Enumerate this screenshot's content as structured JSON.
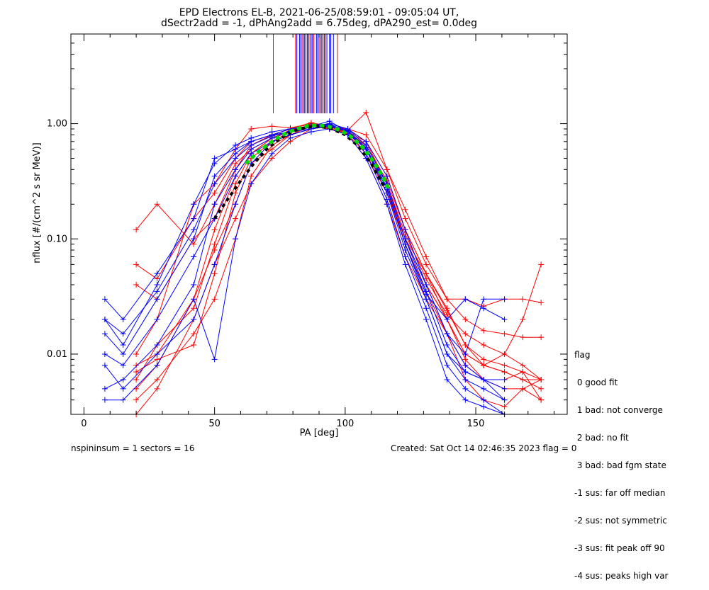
{
  "title": {
    "line1": "EPD Electrons EL-B, 2021-06-25/08:59:01 - 09:05:04 UT,",
    "line2": "dSectr2add = -1, dPhAng2add = 6.75deg, dPA290_est=   0.0deg"
  },
  "chart_data": {
    "type": "line",
    "xlabel": "PA [deg]",
    "ylabel": "nflux [#/(cm^2 s sr MeV)]",
    "xlim": [
      -5,
      185
    ],
    "ylim": [
      0.003,
      6.0
    ],
    "yscale": "log",
    "x_ticks": [
      0,
      50,
      100,
      150
    ],
    "x_tick_labels": [
      "0",
      "50",
      "100",
      "150"
    ],
    "y_ticks": [
      0.01,
      0.1,
      1.0
    ],
    "y_tick_labels": [
      "0.01",
      "0.10",
      "1.00"
    ],
    "grid": false,
    "colors": {
      "red": "#ff0000",
      "blue": "#0000ff",
      "green_fit": "#00dd00",
      "black_fit": "#000000"
    },
    "series": [
      {
        "color": "red",
        "x": [
          20,
          28,
          42,
          50,
          58,
          64,
          72,
          79,
          87,
          94,
          101,
          108,
          116,
          123,
          131,
          139,
          146,
          153,
          161,
          168,
          175
        ],
        "y": [
          0.12,
          0.2,
          0.09,
          0.2,
          0.45,
          0.6,
          0.75,
          0.85,
          0.95,
          0.9,
          0.85,
          0.7,
          0.35,
          0.12,
          0.05,
          0.025,
          0.012,
          0.008,
          0.007,
          0.006,
          0.006
        ]
      },
      {
        "color": "red",
        "x": [
          20,
          28,
          42,
          50,
          58,
          64,
          72,
          79,
          87,
          94,
          101,
          108,
          116,
          123,
          131,
          139,
          146,
          153,
          161,
          168,
          175
        ],
        "y": [
          0.06,
          0.045,
          0.15,
          0.25,
          0.5,
          0.7,
          0.8,
          0.9,
          1.02,
          0.95,
          0.8,
          0.65,
          0.3,
          0.1,
          0.04,
          0.02,
          0.01,
          0.008,
          0.01,
          0.02,
          0.06
        ]
      },
      {
        "color": "red",
        "x": [
          20,
          28,
          42,
          50,
          58,
          64,
          72,
          79,
          87,
          94,
          101,
          108,
          116,
          123,
          131,
          139,
          146,
          153,
          161,
          168,
          175
        ],
        "y": [
          0.008,
          0.01,
          0.03,
          0.08,
          0.2,
          0.45,
          0.6,
          0.8,
          0.95,
          0.9,
          0.85,
          0.6,
          0.25,
          0.1,
          0.05,
          0.02,
          0.009,
          0.006,
          0.006,
          0.007,
          0.004
        ]
      },
      {
        "color": "red",
        "x": [
          20,
          28,
          42,
          50,
          58,
          64,
          72,
          79,
          87,
          94,
          101,
          108,
          116,
          123,
          131,
          139,
          146,
          153,
          161,
          168,
          175
        ],
        "y": [
          0.003,
          0.005,
          0.02,
          0.06,
          0.15,
          0.3,
          0.5,
          0.7,
          0.9,
          1.0,
          0.8,
          0.5,
          0.2,
          0.07,
          0.03,
          0.015,
          0.006,
          0.004,
          0.0035,
          0.005,
          0.004
        ]
      },
      {
        "color": "red",
        "x": [
          20,
          28,
          42,
          50,
          58,
          64,
          72,
          79,
          87,
          94,
          101,
          108,
          116,
          123,
          131,
          139,
          146,
          153,
          161,
          168,
          175
        ],
        "y": [
          0.007,
          0.009,
          0.012,
          0.05,
          0.25,
          0.5,
          0.7,
          0.85,
          0.98,
          0.92,
          0.9,
          0.7,
          0.3,
          0.11,
          0.045,
          0.022,
          0.015,
          0.012,
          0.01,
          0.008,
          0.006
        ]
      },
      {
        "color": "red",
        "x": [
          20,
          28,
          42,
          50,
          58,
          64,
          72,
          79,
          87,
          94,
          101,
          108,
          116,
          123,
          131,
          139,
          146,
          153,
          161,
          168,
          175
        ],
        "y": [
          0.005,
          0.008,
          0.03,
          0.12,
          0.35,
          0.55,
          0.75,
          0.88,
          0.97,
          0.93,
          0.88,
          1.25,
          0.4,
          0.18,
          0.07,
          0.03,
          0.03,
          0.026,
          0.03,
          0.03,
          0.028
        ]
      },
      {
        "color": "red",
        "x": [
          20,
          28,
          42,
          50,
          58,
          64,
          72,
          79,
          87,
          94,
          101,
          108,
          116,
          123,
          131,
          139,
          146,
          153,
          161,
          168,
          175
        ],
        "y": [
          0.004,
          0.006,
          0.015,
          0.03,
          0.1,
          0.35,
          0.65,
          0.8,
          0.95,
          0.9,
          0.8,
          0.55,
          0.25,
          0.09,
          0.035,
          0.015,
          0.008,
          0.006,
          0.005,
          0.005,
          0.006
        ]
      },
      {
        "color": "red",
        "x": [
          20,
          28,
          42,
          50,
          58,
          64,
          72,
          79,
          87,
          94,
          101,
          108,
          116,
          123,
          131,
          139,
          146,
          153,
          161,
          168,
          175
        ],
        "y": [
          0.01,
          0.02,
          0.2,
          0.3,
          0.6,
          0.9,
          0.95,
          0.92,
          1.0,
          0.95,
          0.9,
          0.8,
          0.4,
          0.15,
          0.06,
          0.03,
          0.02,
          0.016,
          0.015,
          0.014,
          0.014
        ]
      },
      {
        "color": "red",
        "x": [
          20,
          28,
          42,
          50,
          58,
          64,
          72,
          79,
          87,
          94,
          101,
          108,
          116,
          123,
          131,
          139,
          146,
          153,
          161,
          168,
          175
        ],
        "y": [
          0.006,
          0.012,
          0.025,
          0.09,
          0.3,
          0.55,
          0.75,
          0.85,
          0.95,
          0.9,
          0.82,
          0.6,
          0.28,
          0.1,
          0.04,
          0.02,
          0.01,
          0.008,
          0.007,
          0.006,
          0.005
        ]
      },
      {
        "color": "red",
        "x": [
          20,
          28,
          42,
          50,
          58,
          64,
          72,
          79,
          87,
          94,
          101,
          108,
          116,
          123,
          131,
          139,
          146,
          153,
          161,
          168,
          175
        ],
        "y": [
          0.04,
          0.03,
          0.1,
          0.15,
          0.4,
          0.65,
          0.8,
          0.9,
          1.0,
          0.95,
          0.85,
          0.65,
          0.32,
          0.12,
          0.05,
          0.024,
          0.012,
          0.009,
          0.008,
          0.007,
          0.006
        ]
      },
      {
        "color": "blue",
        "x": [
          8,
          15,
          28,
          42,
          50,
          58,
          64,
          72,
          79,
          87,
          94,
          101,
          108,
          116,
          123,
          131,
          139,
          146,
          153,
          161
        ],
        "y": [
          0.03,
          0.02,
          0.05,
          0.15,
          0.5,
          0.6,
          0.7,
          0.8,
          0.9,
          0.95,
          1.0,
          0.9,
          0.7,
          0.35,
          0.12,
          0.04,
          0.015,
          0.008,
          0.006,
          0.004
        ]
      },
      {
        "color": "blue",
        "x": [
          8,
          15,
          28,
          42,
          50,
          58,
          64,
          72,
          79,
          87,
          94,
          101,
          108,
          116,
          123,
          131,
          139,
          146,
          153,
          161
        ],
        "y": [
          0.015,
          0.01,
          0.03,
          0.1,
          0.35,
          0.55,
          0.7,
          0.8,
          0.85,
          0.95,
          1.05,
          0.85,
          0.6,
          0.3,
          0.1,
          0.035,
          0.012,
          0.007,
          0.006,
          0.005
        ]
      },
      {
        "color": "blue",
        "x": [
          8,
          15,
          28,
          42,
          50,
          58,
          64,
          72,
          79,
          87,
          94,
          101,
          108,
          116,
          123,
          131,
          139,
          146,
          153,
          161
        ],
        "y": [
          0.005,
          0.006,
          0.012,
          0.04,
          0.2,
          0.4,
          0.6,
          0.75,
          0.85,
          0.9,
          0.95,
          0.88,
          0.6,
          0.25,
          0.08,
          0.03,
          0.01,
          0.006,
          0.005,
          0.004
        ]
      },
      {
        "color": "blue",
        "x": [
          8,
          15,
          28,
          42,
          50,
          58,
          64,
          72,
          79,
          87,
          94,
          101,
          108,
          116,
          123,
          131,
          139,
          146,
          153,
          161
        ],
        "y": [
          0.008,
          0.005,
          0.01,
          0.02,
          0.06,
          0.2,
          0.45,
          0.7,
          0.8,
          0.9,
          0.95,
          0.85,
          0.55,
          0.22,
          0.07,
          0.025,
          0.008,
          0.005,
          0.004,
          0.003
        ]
      },
      {
        "color": "blue",
        "x": [
          8,
          15,
          28,
          42,
          50,
          58,
          64,
          72,
          79,
          87,
          94,
          101,
          108,
          116,
          123,
          131,
          139,
          146,
          153,
          161
        ],
        "y": [
          0.02,
          0.012,
          0.04,
          0.2,
          0.45,
          0.65,
          0.75,
          0.85,
          0.9,
          0.95,
          1.0,
          0.9,
          0.65,
          0.3,
          0.1,
          0.04,
          0.015,
          0.01,
          0.03,
          0.03
        ]
      },
      {
        "color": "blue",
        "x": [
          8,
          15,
          28,
          42,
          50,
          58,
          64,
          72,
          79,
          87,
          94,
          101,
          108,
          116,
          123,
          131,
          139,
          146,
          153,
          161
        ],
        "y": [
          0.01,
          0.008,
          0.02,
          0.07,
          0.15,
          0.35,
          0.55,
          0.7,
          0.8,
          0.9,
          0.97,
          0.85,
          0.6,
          0.27,
          0.09,
          0.03,
          0.01,
          0.007,
          0.006,
          0.006
        ]
      },
      {
        "color": "blue",
        "x": [
          8,
          15,
          28,
          42,
          50,
          58,
          64,
          72,
          79,
          87,
          94,
          101,
          108,
          116,
          123,
          131,
          139,
          146,
          153,
          161
        ],
        "y": [
          0.004,
          0.004,
          0.008,
          0.03,
          0.009,
          0.1,
          0.3,
          0.55,
          0.75,
          0.85,
          0.9,
          0.8,
          0.5,
          0.2,
          0.06,
          0.02,
          0.006,
          0.004,
          0.0035,
          0.003
        ]
      },
      {
        "color": "blue",
        "x": [
          8,
          15,
          28,
          42,
          50,
          58,
          64,
          72,
          79,
          87,
          94,
          101,
          108,
          116,
          123,
          131,
          139,
          146,
          153,
          161
        ],
        "y": [
          0.02,
          0.015,
          0.035,
          0.12,
          0.3,
          0.5,
          0.65,
          0.78,
          0.86,
          0.93,
          0.98,
          0.87,
          0.62,
          0.28,
          0.09,
          0.033,
          0.02,
          0.03,
          0.025,
          0.02
        ]
      }
    ],
    "fit_green": {
      "x": [
        62,
        66,
        70,
        74,
        78,
        82,
        86,
        90,
        94,
        98,
        102,
        106,
        110,
        114,
        117
      ],
      "y": [
        0.45,
        0.55,
        0.65,
        0.75,
        0.84,
        0.91,
        0.96,
        0.97,
        0.94,
        0.88,
        0.78,
        0.65,
        0.5,
        0.36,
        0.26
      ]
    },
    "fit_black": {
      "x": [
        50,
        55,
        60,
        65,
        70,
        75,
        80,
        85,
        90,
        95,
        100,
        105,
        110,
        115
      ],
      "y": [
        0.15,
        0.22,
        0.32,
        0.45,
        0.6,
        0.74,
        0.86,
        0.93,
        0.95,
        0.9,
        0.8,
        0.64,
        0.45,
        0.28
      ]
    },
    "vlines_red": [
      72.5,
      81,
      83.5,
      85,
      86.5,
      88,
      90,
      91,
      92.5,
      97
    ],
    "vlines_blue": [
      81.5,
      82.5,
      83,
      84,
      84.5,
      85.5,
      86,
      87,
      87.5,
      89,
      89.5,
      90.5,
      91.5,
      92,
      93,
      94,
      94.5,
      95.5
    ]
  },
  "legend": {
    "title": "flag",
    "items": [
      " 0 good fit",
      " 1 bad: not converge",
      " 2 bad: no fit",
      " 3 bad: bad fgm state",
      "-1 sus: far off median",
      "-2 sus: not symmetric",
      "-3 sus: fit peak off 90",
      "-4 sus: peaks high var"
    ]
  },
  "footer": {
    "left": "nspininsum =  1  sectors = 16",
    "right": "Created: Sat Oct 14 02:46:35 2023   flag = 0"
  }
}
